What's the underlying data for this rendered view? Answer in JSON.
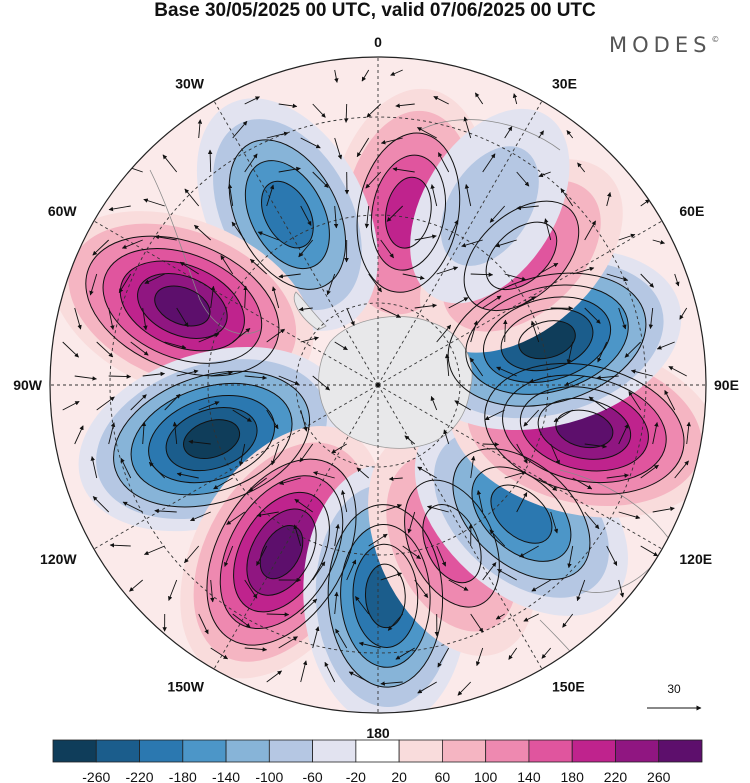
{
  "title": "Base 30/05/2025 00 UTC, valid 07/06/2025 00 UTC",
  "brand": "MODES",
  "brand_mark": "©",
  "projection": "south-polar-stereographic",
  "longitude_labels": [
    {
      "text": "0",
      "lon": 0
    },
    {
      "text": "30E",
      "lon": 30
    },
    {
      "text": "60E",
      "lon": 60
    },
    {
      "text": "90E",
      "lon": 90
    },
    {
      "text": "120E",
      "lon": 120
    },
    {
      "text": "150E",
      "lon": 150
    },
    {
      "text": "180",
      "lon": 180
    },
    {
      "text": "150W",
      "lon": -150
    },
    {
      "text": "120W",
      "lon": -120
    },
    {
      "text": "90W",
      "lon": -90
    },
    {
      "text": "60W",
      "lon": -60
    },
    {
      "text": "30W",
      "lon": -30
    }
  ],
  "reference_vector": {
    "value": "30"
  },
  "colorbar": {
    "colors": [
      "#0f3d5a",
      "#1b5d8c",
      "#2b78b0",
      "#4c96c8",
      "#87b4d8",
      "#b5c7e3",
      "#e2e3f0",
      "#ffffff",
      "#f9dcdc",
      "#f5b5c2",
      "#ee89b0",
      "#e0559e",
      "#bf238d",
      "#901681",
      "#5d0f6c"
    ],
    "labels": [
      "-260",
      "-220",
      "-180",
      "-140",
      "-100",
      "-60",
      "-20",
      "20",
      "60",
      "100",
      "140",
      "180",
      "220",
      "260"
    ]
  },
  "anomaly_centers": [
    {
      "sign": "positive",
      "lon": 10,
      "strength": 180
    },
    {
      "sign": "negative",
      "lon": -28,
      "strength": 180
    },
    {
      "sign": "positive",
      "lon": -68,
      "strength": 260
    },
    {
      "sign": "negative",
      "lon": -108,
      "strength": 300
    },
    {
      "sign": "positive",
      "lon": -150,
      "strength": 260
    },
    {
      "sign": "negative",
      "lon": 178,
      "strength": 220
    },
    {
      "sign": "positive",
      "lon": 155,
      "strength": 140
    },
    {
      "sign": "negative",
      "lon": 132,
      "strength": 180
    },
    {
      "sign": "positive",
      "lon": 102,
      "strength": 260
    },
    {
      "sign": "negative",
      "lon": 75,
      "strength": 280
    },
    {
      "sign": "positive",
      "lon": 48,
      "strength": 140
    },
    {
      "sign": "negative",
      "lon": 32,
      "strength": 80
    }
  ]
}
